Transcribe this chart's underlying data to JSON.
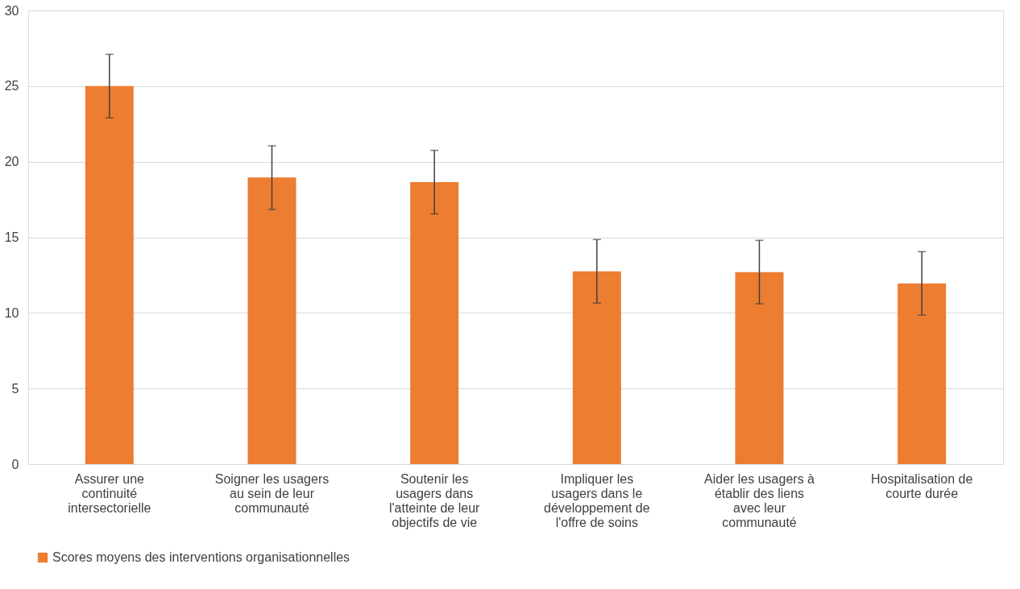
{
  "chart_data": {
    "type": "bar",
    "categories": [
      "Assurer une continuité intersectorielle",
      "Soigner les usagers au sein de leur communauté",
      "Soutenir les usagers dans l'atteinte de leur objectifs de vie",
      "Impliquer les usagers dans le développement de l'offre de soins",
      "Aider les usagers à établir des liens avec leur communauté",
      "Hospitalisation de courte durée"
    ],
    "series": [
      {
        "name": "Scores moyens des interventions organisationnelles",
        "color": "#ed7d31",
        "values": [
          25.0,
          18.95,
          18.65,
          12.75,
          12.7,
          11.95
        ],
        "errors": [
          2.1,
          2.1,
          2.1,
          2.1,
          2.1,
          2.1
        ]
      }
    ],
    "ylim": [
      0,
      30
    ],
    "yticks": [
      0,
      5,
      10,
      15,
      20,
      25,
      30
    ],
    "grid": "y",
    "legend": "bottom"
  }
}
